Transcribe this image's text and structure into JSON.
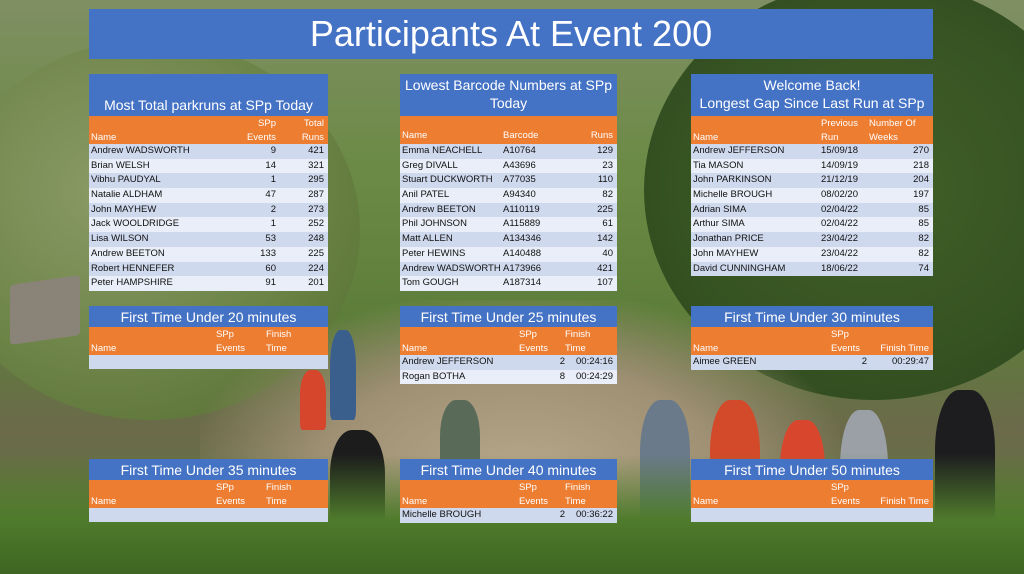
{
  "page_title": "Participants At Event 200",
  "tables": {
    "most_total": {
      "title_line1": "",
      "title_line2": "Most Total parkruns at SPp Today",
      "headers": [
        "Name",
        "SPp\nEvents",
        "Total\nRuns"
      ],
      "h_name": "Name",
      "h_c2_top": "SPp",
      "h_c2_bot": "Events",
      "h_c3_top": "Total",
      "h_c3_bot": "Runs",
      "rows": [
        [
          "Andrew WADSWORTH",
          "9",
          "421"
        ],
        [
          "Brian WELSH",
          "14",
          "321"
        ],
        [
          "Vibhu PAUDYAL",
          "1",
          "295"
        ],
        [
          "Natalie ALDHAM",
          "47",
          "287"
        ],
        [
          "John MAYHEW",
          "2",
          "273"
        ],
        [
          "Jack WOOLDRIDGE",
          "1",
          "252"
        ],
        [
          "Lisa WILSON",
          "53",
          "248"
        ],
        [
          "Andrew BEETON",
          "133",
          "225"
        ],
        [
          "Robert HENNEFER",
          "60",
          "224"
        ],
        [
          "Peter HAMPSHIRE",
          "91",
          "201"
        ]
      ]
    },
    "lowest_barcode": {
      "title_line1": "Lowest Barcode Numbers at SPp",
      "title_line2": "Today",
      "h_name": "Name",
      "h_c2": "Barcode",
      "h_c3": "Runs",
      "rows": [
        [
          "Emma NEACHELL",
          "A10764",
          "129"
        ],
        [
          "Greg DIVALL",
          "A43696",
          "23"
        ],
        [
          "Stuart DUCKWORTH",
          "A77035",
          "110"
        ],
        [
          "Anil PATEL",
          "A94340",
          "82"
        ],
        [
          "Andrew BEETON",
          "A110119",
          "225"
        ],
        [
          "Phil JOHNSON",
          "A115889",
          "61"
        ],
        [
          "Matt ALLEN",
          "A134346",
          "142"
        ],
        [
          "Peter HEWINS",
          "A140488",
          "40"
        ],
        [
          "Andrew WADSWORTH",
          "A173966",
          "421"
        ],
        [
          "Tom GOUGH",
          "A187314",
          "107"
        ]
      ]
    },
    "welcome_back": {
      "title_line1": "Welcome Back!",
      "title_line2": "Longest Gap Since Last Run at SPp",
      "h_name": "Name",
      "h_c2_top": "Previous",
      "h_c2_bot": "Run",
      "h_c3_top": "Number Of",
      "h_c3_bot": "Weeks",
      "rows": [
        [
          "Andrew JEFFERSON",
          "15/09/18",
          "270"
        ],
        [
          "Tia MASON",
          "14/09/19",
          "218"
        ],
        [
          "John PARKINSON",
          "21/12/19",
          "204"
        ],
        [
          "Michelle BROUGH",
          "08/02/20",
          "197"
        ],
        [
          "Adrian SIMA",
          "02/04/22",
          "85"
        ],
        [
          "Arthur SIMA",
          "02/04/22",
          "85"
        ],
        [
          "Jonathan PRICE",
          "23/04/22",
          "82"
        ],
        [
          "John MAYHEW",
          "23/04/22",
          "82"
        ],
        [
          "David CUNNINGHAM",
          "18/06/22",
          "74"
        ]
      ]
    },
    "under20": {
      "title": "First Time Under 20 minutes",
      "h_name": "Name",
      "h_c2_top": "SPp",
      "h_c2_bot": "Events",
      "h_c3_top": "Finish",
      "h_c3_bot": "Time",
      "rows": []
    },
    "under25": {
      "title": "First Time Under 25 minutes",
      "h_name": "Name",
      "h_c2_top": "SPp",
      "h_c2_bot": "Events",
      "h_c3_top": "Finish",
      "h_c3_bot": "Time",
      "rows": [
        [
          "Andrew JEFFERSON",
          "2",
          "00:24:16"
        ],
        [
          "Rogan BOTHA",
          "8",
          "00:24:29"
        ]
      ]
    },
    "under30": {
      "title": "First Time Under 30 minutes",
      "h_name": "Name",
      "h_c2_top": "SPp",
      "h_c2_bot": "Events",
      "h_c3_top": "",
      "h_c3_bot": "Finish Time",
      "rows": [
        [
          "Aimee GREEN",
          "2",
          "00:29:47"
        ]
      ]
    },
    "under35": {
      "title": "First Time Under 35 minutes",
      "h_name": "Name",
      "h_c2_top": "SPp",
      "h_c2_bot": "Events",
      "h_c3_top": "Finish",
      "h_c3_bot": "Time",
      "rows": []
    },
    "under40": {
      "title": "First Time Under 40 minutes",
      "h_name": "Name",
      "h_c2_top": "SPp",
      "h_c2_bot": "Events",
      "h_c3_top": "Finish",
      "h_c3_bot": "Time",
      "rows": [
        [
          "Michelle BROUGH",
          "2",
          "00:36:22"
        ]
      ]
    },
    "under50": {
      "title": "First Time Under 50 minutes",
      "h_name": "Name",
      "h_c2_top": "SPp",
      "h_c2_bot": "Events",
      "h_c3_top": "",
      "h_c3_bot": "Finish Time",
      "rows": []
    }
  },
  "colors": {
    "title_blue": "#4472c4",
    "header_orange": "#ed7d31",
    "row_light": "#cfd9ee",
    "row_lighter": "#e9eef8"
  }
}
